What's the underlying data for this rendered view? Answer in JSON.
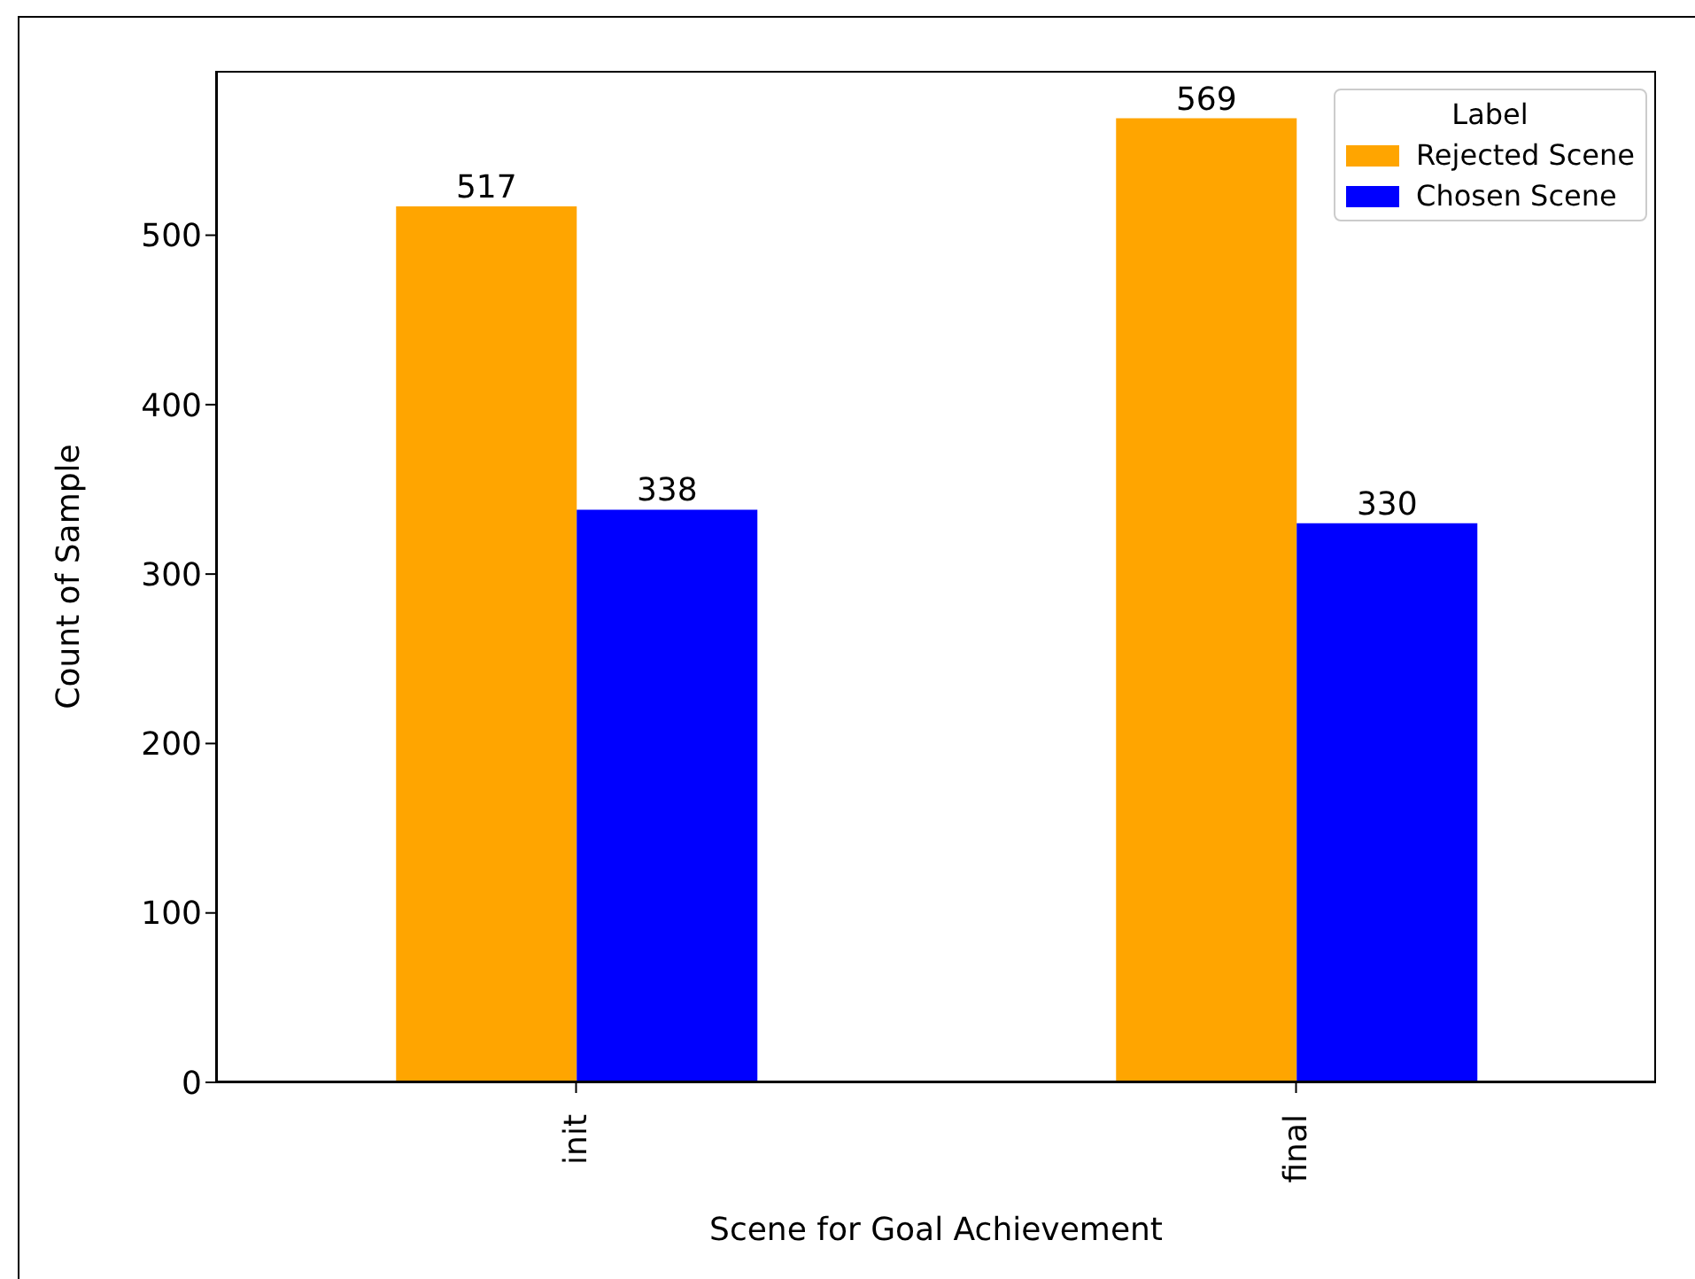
{
  "chart_data": {
    "type": "bar",
    "xlabel": "Scene for Goal Achievement",
    "ylabel": "Count of Sample",
    "legend_title": "Label",
    "categories": [
      "init",
      "final"
    ],
    "series": [
      {
        "name": "Rejected Scene",
        "color": "#ffa500",
        "values": [
          517,
          569
        ]
      },
      {
        "name": "Chosen Scene",
        "color": "#0000ff",
        "values": [
          338,
          330
        ]
      }
    ],
    "ylim": [
      0,
      597
    ],
    "yticks": [
      0,
      100,
      200,
      300,
      400,
      500
    ],
    "data_labels": true,
    "legend": "top right",
    "grid": false
  }
}
